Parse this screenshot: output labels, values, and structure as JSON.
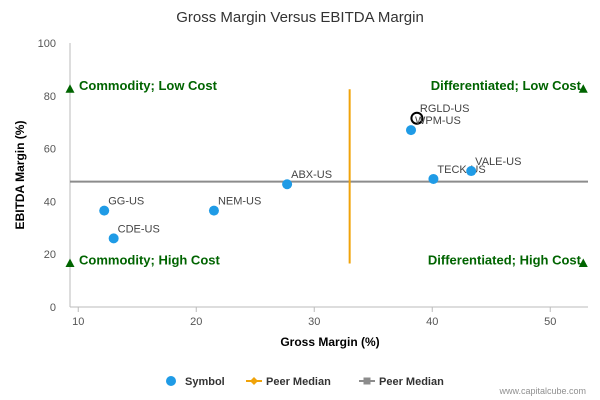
{
  "chart_data": {
    "type": "scatter",
    "title": "Gross Margin Versus EBITDA Margin",
    "xlabel": "Gross Margin (%)",
    "ylabel": "EBITDA Margin (%)",
    "xlim": [
      9.3,
      53.2
    ],
    "ylim": [
      0,
      100
    ],
    "xticks": [
      10,
      20,
      30,
      40,
      50
    ],
    "yticks": [
      0,
      20,
      40,
      60,
      80,
      100
    ],
    "grid": false,
    "points": [
      {
        "label": "GG-US",
        "x": 12.2,
        "y": 36.5
      },
      {
        "label": "CDE-US",
        "x": 13.0,
        "y": 26.0
      },
      {
        "label": "NEM-US",
        "x": 21.5,
        "y": 36.5
      },
      {
        "label": "ABX-US",
        "x": 27.7,
        "y": 46.5
      },
      {
        "label": "WPM-US",
        "x": 38.2,
        "y": 67.0
      },
      {
        "label": "TECK-US",
        "x": 40.1,
        "y": 48.5
      },
      {
        "label": "VALE-US",
        "x": 43.3,
        "y": 51.5
      }
    ],
    "highlight": {
      "label": "RGLD-US",
      "x": 38.7,
      "y": 71.5
    },
    "peer_median_x": 33.0,
    "peer_median_y": 47.5,
    "median_x_range": [
      16.5,
      82.5
    ],
    "quadrants": [
      {
        "label": "Commodity; Low Cost",
        "position": "top-left",
        "marker_x": 9.3,
        "marker_y": 82.5
      },
      {
        "label": "Differentiated; Low Cost",
        "position": "top-right",
        "marker_x": 52.8,
        "marker_y": 82.5
      },
      {
        "label": "Commodity; High Cost",
        "position": "bottom-left",
        "marker_x": 9.3,
        "marker_y": 16.5
      },
      {
        "label": "Differentiated; High Cost",
        "position": "bottom-right",
        "marker_x": 52.8,
        "marker_y": 16.5
      }
    ],
    "legend": [
      {
        "label": "Symbol",
        "kind": "circle"
      },
      {
        "label": "Peer Median",
        "kind": "line-diamond"
      },
      {
        "label": "Peer Median",
        "kind": "line-square"
      }
    ],
    "legend_position": "bottom-center"
  },
  "colors": {
    "point": "#1f9be6",
    "highlight_ring": "#000000",
    "median_vertical": "#f0a30a",
    "median_horizontal": "#8c8c8c",
    "quadrant": "#006400",
    "axis": "#bbbbbb"
  },
  "credit": "www.capitalcube.com"
}
